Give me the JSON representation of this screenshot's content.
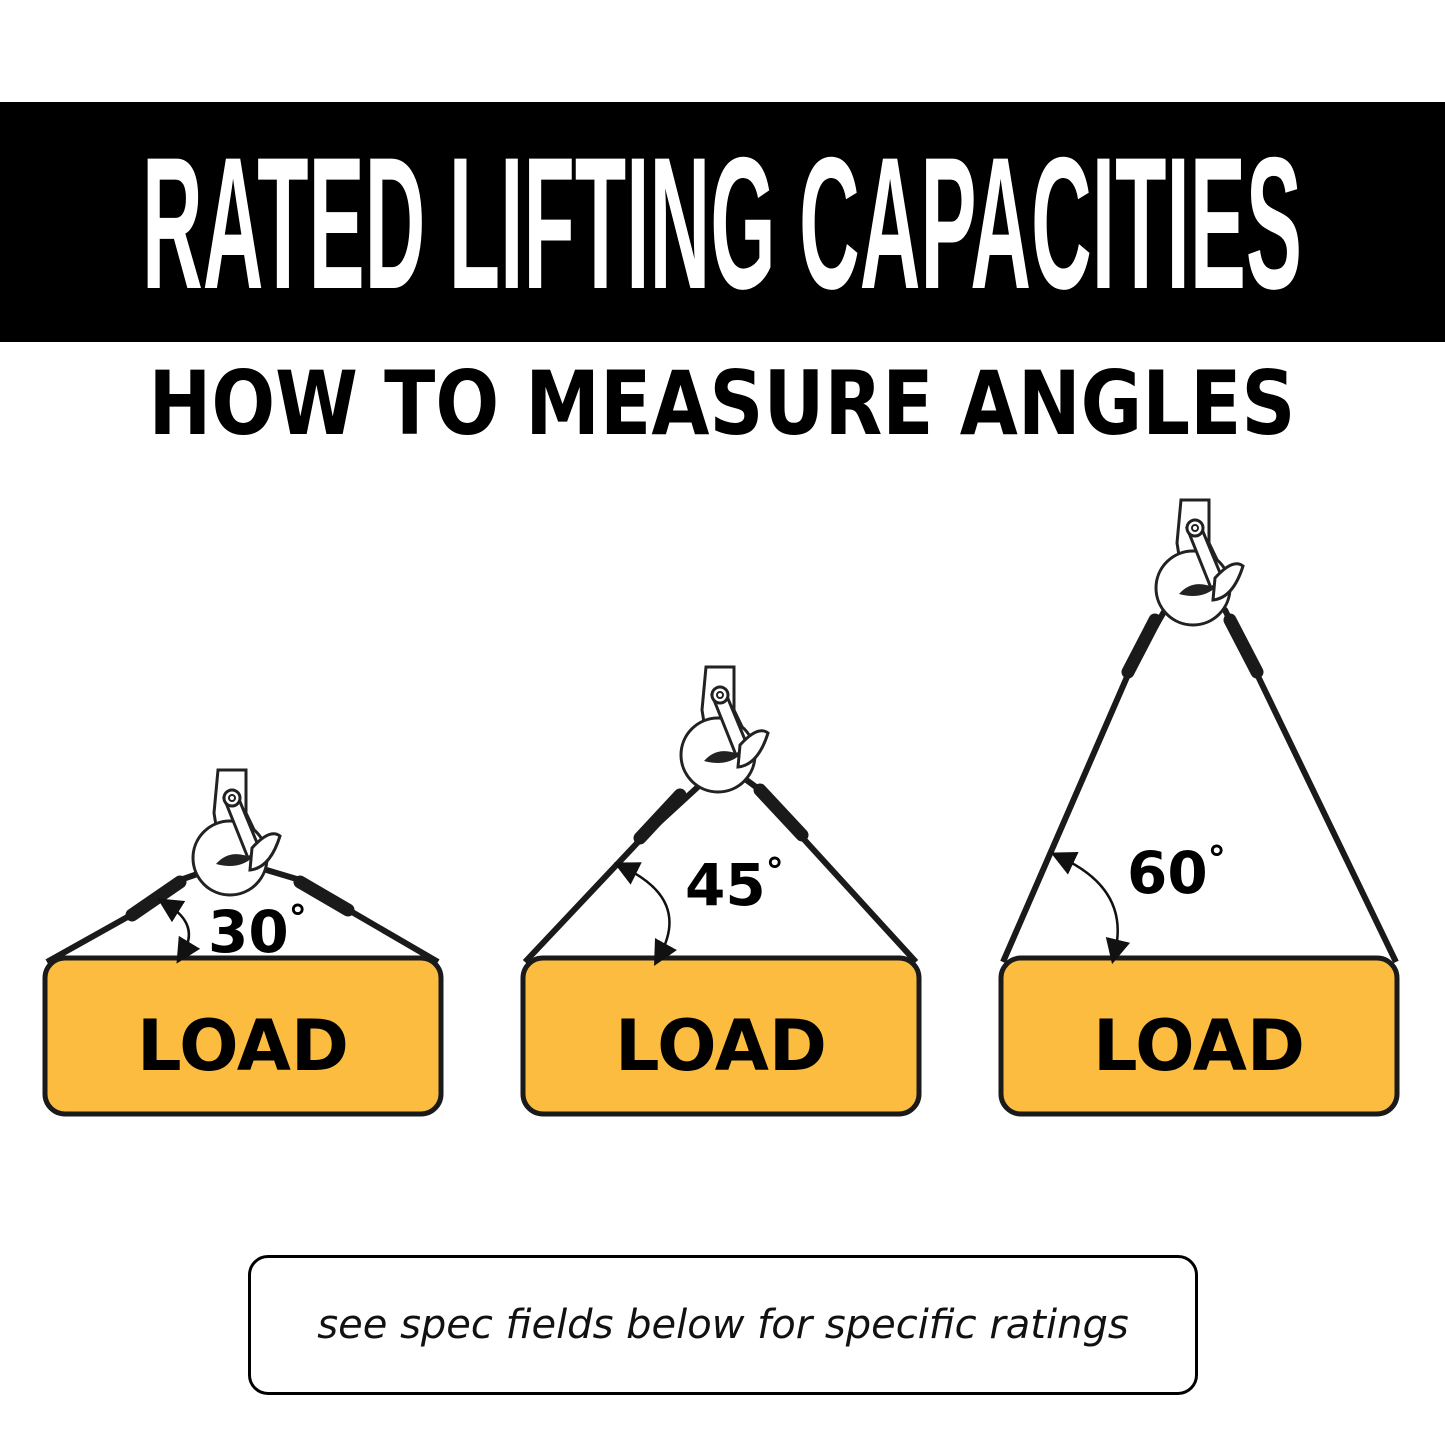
{
  "header": {
    "title": "RATED LIFTING CAPACITIES",
    "subtitle": "HOW TO MEASURE ANGLES"
  },
  "diagrams": [
    {
      "angle": "30",
      "degree": "°",
      "load_label": "LOAD"
    },
    {
      "angle": "45",
      "degree": "°",
      "load_label": "LOAD"
    },
    {
      "angle": "60",
      "degree": "°",
      "load_label": "LOAD"
    }
  ],
  "note": "see spec fields below for specific ratings",
  "colors": {
    "banner": "#000000",
    "load_fill": "#FBBC40",
    "outline": "#1a1a1a"
  }
}
